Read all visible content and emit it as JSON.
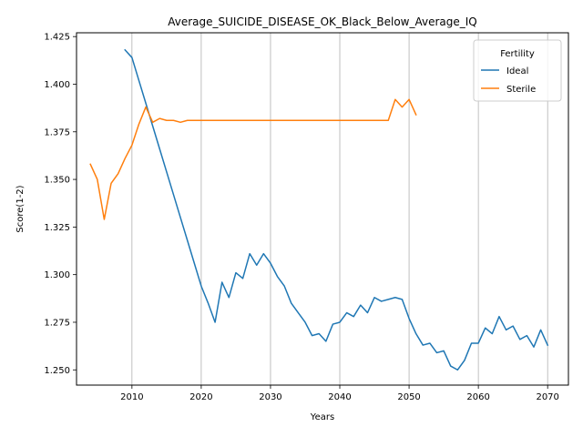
{
  "chart_data": {
    "type": "line",
    "title": "Average_SUICIDE_DISEASE_OK_Black_Below_Average_IQ",
    "xlabel": "Years",
    "ylabel": "Score(1-2)",
    "xlim": [
      2002,
      2073
    ],
    "ylim": [
      1.242,
      1.427
    ],
    "xticks": [
      2010,
      2020,
      2030,
      2040,
      2050,
      2060,
      2070
    ],
    "yticks": [
      1.25,
      1.275,
      1.3,
      1.325,
      1.35,
      1.375,
      1.4,
      1.425
    ],
    "ytick_labels": [
      "1.250",
      "1.275",
      "1.300",
      "1.325",
      "1.350",
      "1.375",
      "1.400",
      "1.425"
    ],
    "grid": "vertical",
    "legend": {
      "title": "Fertility",
      "placement": "top-right"
    },
    "series": [
      {
        "name": "Ideal",
        "color": "#1f77b4",
        "x": [
          2009,
          2010,
          2011,
          2012,
          2013,
          2014,
          2015,
          2016,
          2017,
          2018,
          2019,
          2020,
          2021,
          2022,
          2023,
          2024,
          2025,
          2026,
          2027,
          2028,
          2029,
          2030,
          2031,
          2032,
          2033,
          2034,
          2035,
          2036,
          2037,
          2038,
          2039,
          2040,
          2041,
          2042,
          2043,
          2044,
          2045,
          2046,
          2047,
          2048,
          2049,
          2050,
          2051,
          2052,
          2053,
          2054,
          2055,
          2056,
          2057,
          2058,
          2059,
          2060,
          2061,
          2062,
          2063,
          2064,
          2065,
          2066,
          2067,
          2068,
          2069,
          2070
        ],
        "y": [
          1.418,
          1.414,
          1.402,
          1.39,
          1.378,
          1.366,
          1.354,
          1.342,
          1.33,
          1.318,
          1.306,
          1.294,
          1.285,
          1.275,
          1.296,
          1.288,
          1.301,
          1.298,
          1.311,
          1.305,
          1.311,
          1.306,
          1.299,
          1.294,
          1.285,
          1.28,
          1.275,
          1.268,
          1.269,
          1.265,
          1.274,
          1.275,
          1.28,
          1.278,
          1.284,
          1.28,
          1.288,
          1.286,
          1.287,
          1.288,
          1.287,
          1.277,
          1.269,
          1.263,
          1.264,
          1.259,
          1.26,
          1.252,
          1.25,
          1.255,
          1.264,
          1.264,
          1.272,
          1.269,
          1.278,
          1.271,
          1.273,
          1.266,
          1.268,
          1.262,
          1.271,
          1.263
        ]
      },
      {
        "name": "Sterile",
        "color": "#ff7f0e",
        "x": [
          2004,
          2005,
          2006,
          2007,
          2008,
          2009,
          2010,
          2011,
          2012,
          2013,
          2014,
          2015,
          2016,
          2017,
          2018,
          2019,
          2020,
          2021,
          2022,
          2023,
          2024,
          2025,
          2026,
          2027,
          2028,
          2029,
          2030,
          2031,
          2032,
          2033,
          2034,
          2035,
          2036,
          2037,
          2038,
          2039,
          2040,
          2041,
          2042,
          2043,
          2044,
          2045,
          2046,
          2047,
          2048,
          2049,
          2050,
          2051
        ],
        "y": [
          1.358,
          1.35,
          1.329,
          1.348,
          1.353,
          1.361,
          1.368,
          1.379,
          1.388,
          1.38,
          1.382,
          1.381,
          1.381,
          1.38,
          1.381,
          1.381,
          1.381,
          1.381,
          1.381,
          1.381,
          1.381,
          1.381,
          1.381,
          1.381,
          1.381,
          1.381,
          1.381,
          1.381,
          1.381,
          1.381,
          1.381,
          1.381,
          1.381,
          1.381,
          1.381,
          1.381,
          1.381,
          1.381,
          1.381,
          1.381,
          1.381,
          1.381,
          1.381,
          1.381,
          1.392,
          1.388,
          1.392,
          1.384
        ]
      }
    ]
  }
}
